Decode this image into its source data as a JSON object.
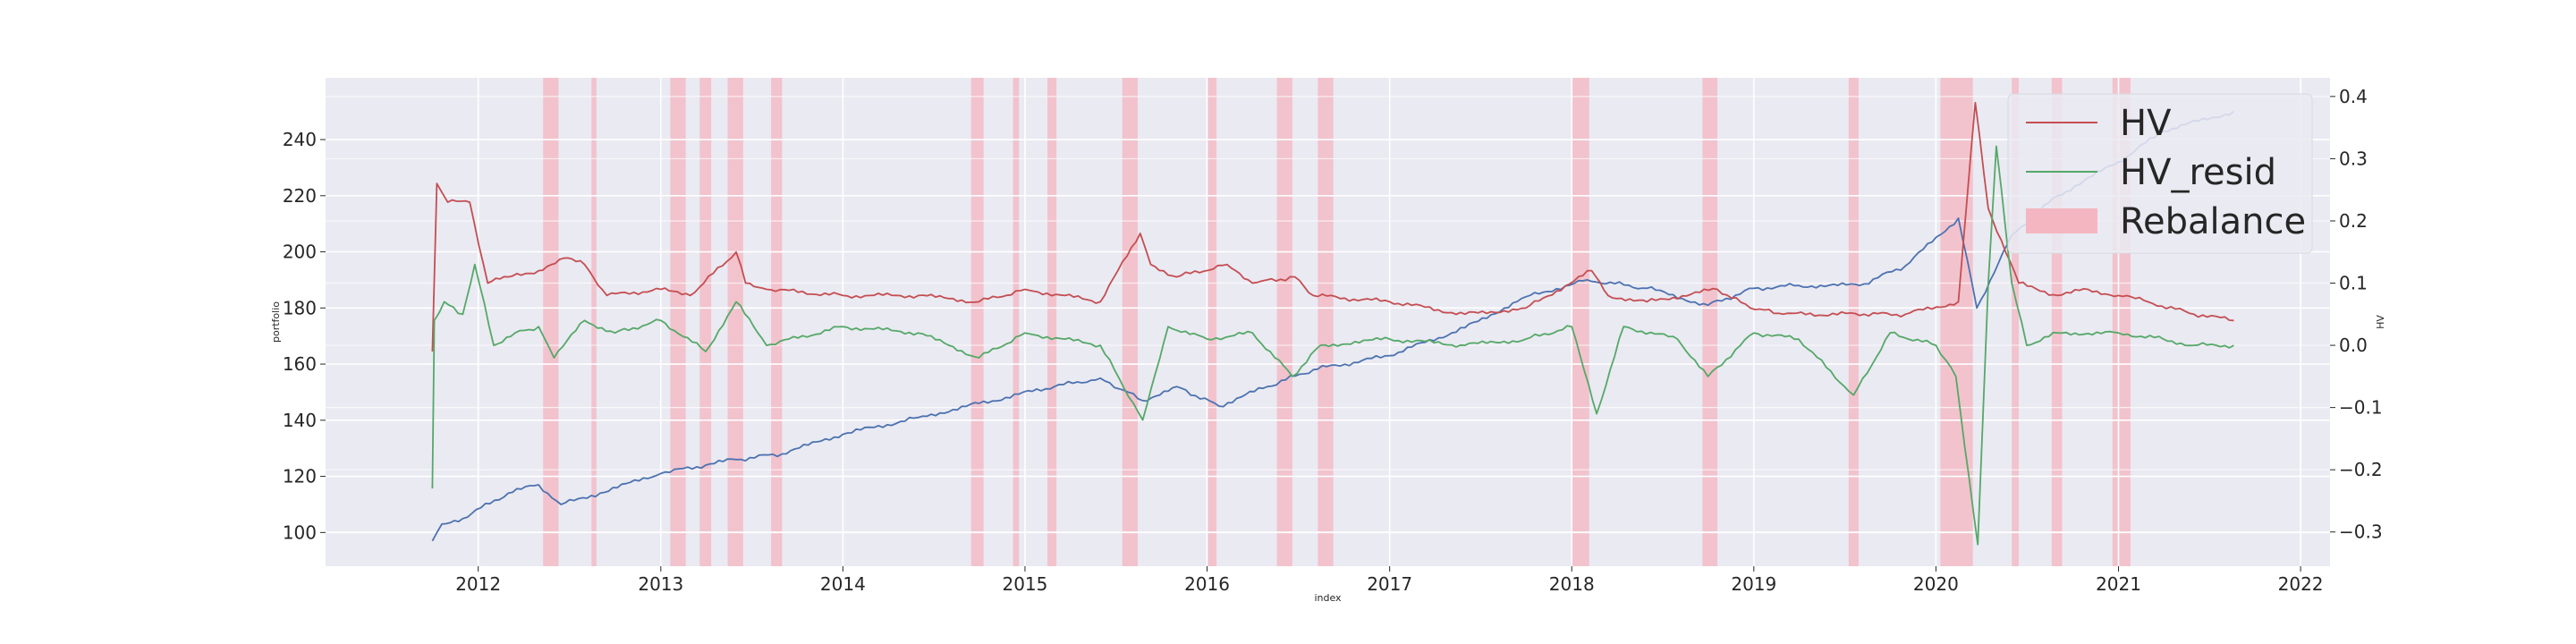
{
  "chart_data": {
    "type": "line",
    "title": "",
    "xlabel": "index",
    "ylabel_left": "portfolio",
    "ylabel_right": "HV",
    "x_range": [
      "2011-03-01",
      "2022-03-01"
    ],
    "ylim_left": [
      88,
      262
    ],
    "ylim_right": [
      -0.355,
      0.43
    ],
    "x_ticks": [
      "2012",
      "2013",
      "2014",
      "2015",
      "2016",
      "2017",
      "2018",
      "2019",
      "2020",
      "2021",
      "2022"
    ],
    "y_ticks_left": [
      100,
      120,
      140,
      160,
      180,
      200,
      220,
      240
    ],
    "y_ticks_left_labels": [
      "100",
      "120",
      "140",
      "160",
      "180",
      "200",
      "220",
      "240"
    ],
    "y_ticks_right": [
      -0.3,
      -0.2,
      -0.1,
      0.0,
      0.1,
      0.2,
      0.3,
      0.4
    ],
    "y_ticks_right_labels": [
      "−0.3",
      "−0.2",
      "−0.1",
      "0.0",
      "0.1",
      "0.2",
      "0.3",
      "0.4"
    ],
    "grid": true,
    "legend_position": "top-right",
    "legend": [
      "HV",
      "HV_resid",
      "Rebalance"
    ],
    "colors": {
      "portfolio": "#4c72b0",
      "HV": "#c44e52",
      "HV_resid": "#55a868",
      "rebalance": "#f4b6c0",
      "plot_bg": "#eaeaf2",
      "grid": "#ffffff"
    },
    "series": [
      {
        "name": "portfolio",
        "axis": "left",
        "x": [
          "2011-10-01",
          "2011-10-20",
          "2011-12-01",
          "2012-03-01",
          "2012-05-01",
          "2012-06-15",
          "2012-09-01",
          "2013-01-01",
          "2013-04-01",
          "2013-06-01",
          "2013-09-01",
          "2014-01-01",
          "2014-06-01",
          "2014-10-01",
          "2015-03-01",
          "2015-06-01",
          "2015-08-25",
          "2015-11-01",
          "2016-01-25",
          "2016-05-01",
          "2016-08-01",
          "2017-01-01",
          "2017-06-01",
          "2017-10-01",
          "2018-02-01",
          "2018-06-01",
          "2018-10-01",
          "2019-01-01",
          "2019-04-01",
          "2019-08-01",
          "2019-11-01",
          "2020-02-15",
          "2020-03-23",
          "2020-06-01",
          "2020-09-01",
          "2021-01-01",
          "2021-04-01",
          "2021-08-20"
        ],
        "values": [
          97,
          103,
          105,
          114,
          117,
          110,
          114,
          121,
          124,
          126,
          128,
          135,
          141,
          146,
          152,
          155,
          147,
          152,
          145,
          152,
          158,
          163,
          173,
          184,
          190,
          187,
          181,
          187,
          188,
          188,
          195,
          212,
          180,
          206,
          220,
          232,
          243,
          250
        ]
      },
      {
        "name": "HV",
        "axis": "right",
        "x": [
          "2011-10-01",
          "2011-10-10",
          "2011-11-01",
          "2011-12-15",
          "2012-01-20",
          "2012-03-01",
          "2012-05-01",
          "2012-06-20",
          "2012-08-01",
          "2012-09-15",
          "2013-01-01",
          "2013-03-01",
          "2013-06-01",
          "2013-06-20",
          "2013-08-01",
          "2014-01-01",
          "2014-06-01",
          "2014-10-01",
          "2015-01-01",
          "2015-06-01",
          "2015-08-20",
          "2015-09-10",
          "2015-11-01",
          "2016-02-10",
          "2016-04-01",
          "2016-06-25",
          "2016-08-01",
          "2017-01-01",
          "2017-06-01",
          "2017-10-01",
          "2018-02-10",
          "2018-03-15",
          "2018-06-01",
          "2018-10-20",
          "2018-12-25",
          "2019-03-01",
          "2019-08-10",
          "2019-11-01",
          "2020-02-15",
          "2020-03-20",
          "2020-04-15",
          "2020-06-15",
          "2020-09-01",
          "2020-11-01",
          "2021-01-01",
          "2021-03-01",
          "2021-06-01",
          "2021-08-20"
        ],
        "values": [
          -0.01,
          0.26,
          0.23,
          0.23,
          0.1,
          0.11,
          0.12,
          0.14,
          0.13,
          0.08,
          0.09,
          0.08,
          0.15,
          0.1,
          0.09,
          0.08,
          0.08,
          0.07,
          0.09,
          0.07,
          0.18,
          0.13,
          0.11,
          0.13,
          0.1,
          0.11,
          0.08,
          0.07,
          0.05,
          0.06,
          0.12,
          0.08,
          0.07,
          0.09,
          0.06,
          0.05,
          0.05,
          0.05,
          0.07,
          0.39,
          0.22,
          0.1,
          0.08,
          0.09,
          0.08,
          0.07,
          0.05,
          0.04
        ]
      },
      {
        "name": "HV_resid",
        "axis": "right",
        "x": [
          "2011-10-01",
          "2011-10-05",
          "2011-10-25",
          "2011-12-01",
          "2011-12-25",
          "2012-02-01",
          "2012-03-15",
          "2012-05-01",
          "2012-06-01",
          "2012-08-01",
          "2012-10-01",
          "2013-01-01",
          "2013-04-01",
          "2013-06-01",
          "2013-08-01",
          "2014-01-01",
          "2014-06-01",
          "2014-10-01",
          "2015-01-01",
          "2015-06-01",
          "2015-08-25",
          "2015-10-15",
          "2016-01-01",
          "2016-04-01",
          "2016-06-20",
          "2016-08-15",
          "2017-01-01",
          "2017-06-01",
          "2017-10-01",
          "2018-01-01",
          "2018-02-20",
          "2018-04-15",
          "2018-08-01",
          "2018-10-01",
          "2019-01-01",
          "2019-04-01",
          "2019-07-20",
          "2019-10-01",
          "2020-01-01",
          "2020-02-10",
          "2020-03-25",
          "2020-04-15",
          "2020-05-01",
          "2020-06-01",
          "2020-07-01",
          "2020-09-01",
          "2021-01-01",
          "2021-04-01",
          "2021-06-01",
          "2021-08-20"
        ],
        "values": [
          -0.23,
          0.04,
          0.07,
          0.05,
          0.13,
          0.0,
          0.02,
          0.03,
          -0.02,
          0.04,
          0.02,
          0.04,
          -0.01,
          0.07,
          0.0,
          0.03,
          0.02,
          -0.02,
          0.02,
          0.0,
          -0.12,
          0.03,
          0.01,
          0.02,
          -0.05,
          0.0,
          0.01,
          0.0,
          0.01,
          0.03,
          -0.11,
          0.03,
          0.01,
          -0.05,
          0.02,
          0.01,
          -0.08,
          0.02,
          0.0,
          -0.05,
          -0.32,
          0.1,
          0.32,
          0.1,
          0.0,
          0.02,
          0.02,
          0.01,
          0.0,
          0.0
        ]
      }
    ],
    "rebalance_periods": [
      [
        "2012-05-10",
        "2012-06-10"
      ],
      [
        "2012-08-15",
        "2012-08-25"
      ],
      [
        "2013-01-20",
        "2013-02-20"
      ],
      [
        "2013-03-20",
        "2013-04-12"
      ],
      [
        "2013-05-15",
        "2013-06-15"
      ],
      [
        "2013-08-10",
        "2013-09-01"
      ],
      [
        "2014-09-15",
        "2014-10-10"
      ],
      [
        "2014-12-08",
        "2014-12-20"
      ],
      [
        "2015-02-15",
        "2015-03-05"
      ],
      [
        "2015-07-15",
        "2015-08-15"
      ],
      [
        "2016-01-01",
        "2016-01-20"
      ],
      [
        "2016-05-20",
        "2016-06-20"
      ],
      [
        "2016-08-10",
        "2016-09-10"
      ],
      [
        "2018-01-01",
        "2018-02-05"
      ],
      [
        "2018-09-20",
        "2018-10-20"
      ],
      [
        "2019-07-10",
        "2019-07-30"
      ],
      [
        "2020-01-10",
        "2020-03-15"
      ],
      [
        "2020-06-01",
        "2020-06-15"
      ],
      [
        "2020-08-20",
        "2020-09-10"
      ],
      [
        "2020-12-20",
        "2021-01-25"
      ]
    ]
  }
}
